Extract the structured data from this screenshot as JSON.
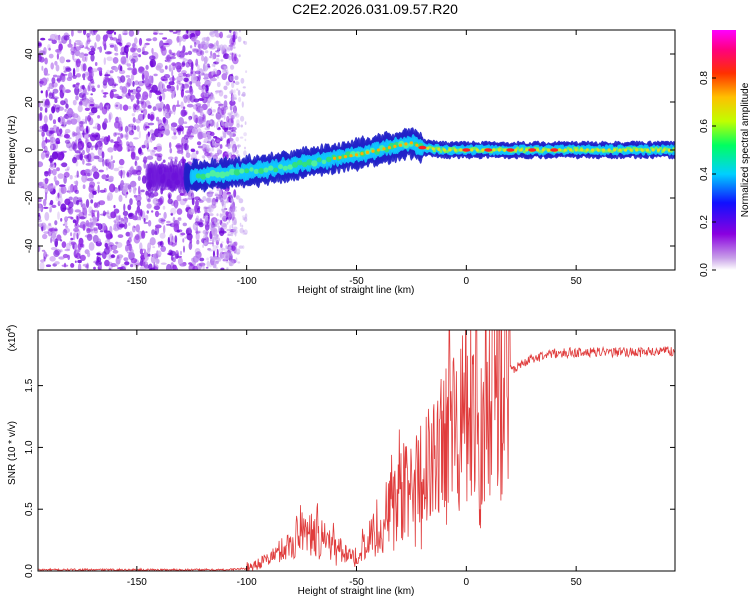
{
  "title": "C2E2.2026.031.09.57.R20",
  "chart_data": [
    {
      "type": "heatmap",
      "name": "spectrogram",
      "xlabel": "Height of straight line (km)",
      "ylabel": "Frequency (Hz)",
      "xlim": [
        -195,
        95
      ],
      "ylim": [
        -50,
        50
      ],
      "xticks": [
        -150,
        -100,
        -50,
        0,
        50
      ],
      "yticks": [
        -40,
        -20,
        0,
        20,
        40
      ],
      "colorbar": {
        "label": "Normalized spectral amplitude",
        "range": [
          0,
          1
        ],
        "ticks": [
          "0.0",
          "0.2",
          "0.4",
          "0.6",
          "0.8"
        ],
        "tick_values": [
          0,
          0.2,
          0.4,
          0.6,
          0.8
        ]
      },
      "noise_region_x": [
        -195,
        -105
      ],
      "signal_trace": {
        "x": [
          -128,
          -110,
          -90,
          -70,
          -50,
          -40,
          -30,
          -25,
          -20,
          -10,
          0,
          10,
          20,
          40,
          60,
          80,
          95
        ],
        "y": [
          -11,
          -10,
          -8,
          -5,
          -2,
          0,
          2,
          3,
          1,
          0,
          0,
          0,
          0,
          0,
          0,
          0,
          0
        ],
        "peak_amplitude_x": [
          -20,
          0,
          10,
          20,
          30,
          40
        ]
      }
    },
    {
      "type": "line",
      "name": "snr",
      "xlabel": "Height of straight line (km)",
      "ylabel": "SNR (10 * v/v)",
      "y_multiplier": "(x10",
      "y_multiplier_exp": "4",
      "xlim": [
        -195,
        95
      ],
      "ylim": [
        0,
        1.95
      ],
      "xticks": [
        -150,
        -100,
        -50,
        0,
        50
      ],
      "yticks": [
        0,
        0.5,
        1.0,
        1.5
      ],
      "ytick_labels": [
        "0.0",
        "0.5",
        "1.0",
        "1.5"
      ],
      "color": "#e03c3c",
      "envelope": {
        "x": [
          -195,
          -110,
          -100,
          -90,
          -80,
          -75,
          -70,
          -65,
          -60,
          -55,
          -50,
          -45,
          -40,
          -35,
          -30,
          -25,
          -20,
          -15,
          -10,
          -5,
          0,
          5,
          10,
          15,
          20,
          30,
          40,
          50,
          60,
          70,
          80,
          95
        ],
        "y": [
          0.01,
          0.01,
          0.02,
          0.1,
          0.22,
          0.35,
          0.3,
          0.25,
          0.2,
          0.15,
          0.12,
          0.22,
          0.35,
          0.5,
          0.6,
          0.7,
          0.75,
          0.9,
          1.05,
          1.15,
          1.2,
          1.25,
          1.3,
          1.45,
          1.62,
          1.72,
          1.76,
          1.77,
          1.77,
          1.77,
          1.77,
          1.78
        ]
      }
    }
  ]
}
